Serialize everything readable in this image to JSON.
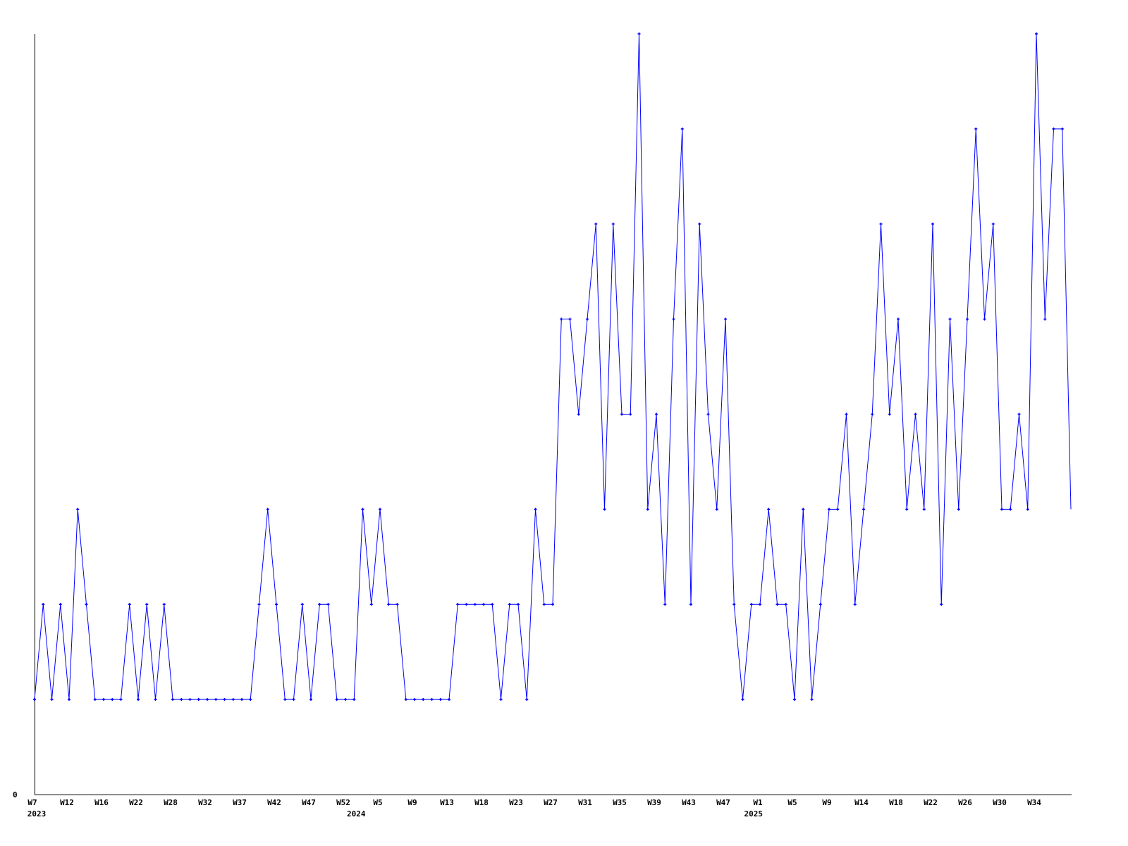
{
  "chart_data": {
    "type": "line",
    "title": "",
    "xlabel": "",
    "ylabel": "",
    "ylim": [
      0,
      8
    ],
    "y_tick_labels": [
      "0"
    ],
    "grid": false,
    "legend": "none",
    "colors": {
      "series": "#0000ff",
      "axis": "#000000"
    },
    "x_tick_labels": [
      {
        "index": 0,
        "label": "W7"
      },
      {
        "index": 4,
        "label": "W12"
      },
      {
        "index": 8,
        "label": "W16"
      },
      {
        "index": 12,
        "label": "W22"
      },
      {
        "index": 16,
        "label": "W28"
      },
      {
        "index": 20,
        "label": "W32"
      },
      {
        "index": 24,
        "label": "W37"
      },
      {
        "index": 28,
        "label": "W42"
      },
      {
        "index": 32,
        "label": "W47"
      },
      {
        "index": 36,
        "label": "W52"
      },
      {
        "index": 40,
        "label": "W5"
      },
      {
        "index": 44,
        "label": "W9"
      },
      {
        "index": 48,
        "label": "W13"
      },
      {
        "index": 52,
        "label": "W18"
      },
      {
        "index": 56,
        "label": "W23"
      },
      {
        "index": 60,
        "label": "W27"
      },
      {
        "index": 64,
        "label": "W31"
      },
      {
        "index": 68,
        "label": "W35"
      },
      {
        "index": 72,
        "label": "W39"
      },
      {
        "index": 76,
        "label": "W43"
      },
      {
        "index": 80,
        "label": "W47"
      },
      {
        "index": 84,
        "label": "W1"
      },
      {
        "index": 88,
        "label": "W5"
      },
      {
        "index": 92,
        "label": "W9"
      },
      {
        "index": 96,
        "label": "W14"
      },
      {
        "index": 100,
        "label": "W18"
      },
      {
        "index": 104,
        "label": "W22"
      },
      {
        "index": 108,
        "label": "W26"
      },
      {
        "index": 112,
        "label": "W30"
      },
      {
        "index": 116,
        "label": "W34"
      }
    ],
    "year_labels": [
      {
        "index": 0,
        "label": "2023"
      },
      {
        "index": 37,
        "label": "2024"
      },
      {
        "index": 83,
        "label": "2025"
      }
    ],
    "series": [
      {
        "values": [
          1,
          2,
          1,
          2,
          1,
          3,
          2,
          1,
          1,
          1,
          1,
          2,
          1,
          2,
          1,
          2,
          1,
          1,
          1,
          1,
          1,
          1,
          1,
          1,
          1,
          1,
          2,
          3,
          2,
          1,
          1,
          2,
          1,
          2,
          2,
          1,
          1,
          1,
          3,
          2,
          3,
          2,
          2,
          1,
          1,
          1,
          1,
          1,
          1,
          2,
          2,
          2,
          2,
          2,
          1,
          2,
          2,
          1,
          3,
          2,
          2,
          5,
          5,
          4,
          5,
          6,
          3,
          6,
          4,
          4,
          8,
          3,
          4,
          2,
          5,
          7,
          2,
          6,
          4,
          3,
          5,
          2,
          1,
          2,
          2,
          3,
          2,
          2,
          1,
          3,
          1,
          2,
          3,
          3,
          4,
          2,
          3,
          4,
          6,
          4,
          5,
          3,
          4,
          3,
          6,
          2,
          5,
          3,
          5,
          7,
          5,
          6,
          3,
          3,
          4,
          3,
          8,
          5,
          7,
          7,
          3
        ]
      }
    ]
  }
}
